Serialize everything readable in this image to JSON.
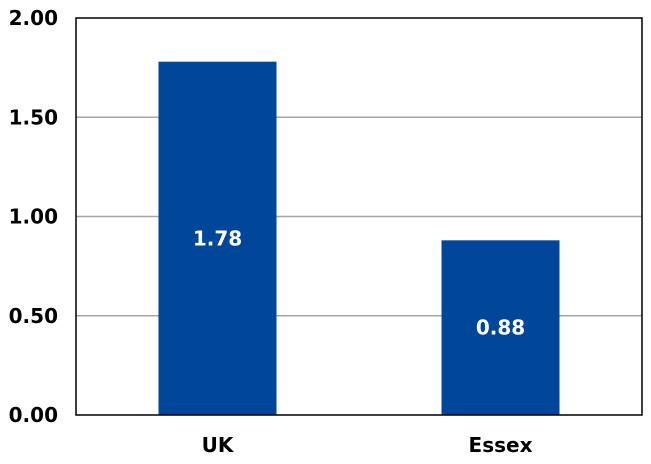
{
  "chart_data": {
    "type": "bar",
    "title": "",
    "xlabel": "",
    "ylabel": "",
    "categories": [
      "UK",
      "Essex"
    ],
    "values": [
      1.78,
      0.88
    ],
    "value_labels": [
      "1.78",
      "0.88"
    ],
    "ylim": [
      0,
      2
    ],
    "yticks": [
      0,
      0.5,
      1,
      1.5,
      2
    ],
    "ytick_labels": [
      "0.00",
      "0.50",
      "1.00",
      "1.50",
      "2.00"
    ],
    "grid": true,
    "legend": "none",
    "colors": {
      "bar": "#00479B",
      "grid": "#A6A6A6",
      "axis": "#000000"
    }
  }
}
